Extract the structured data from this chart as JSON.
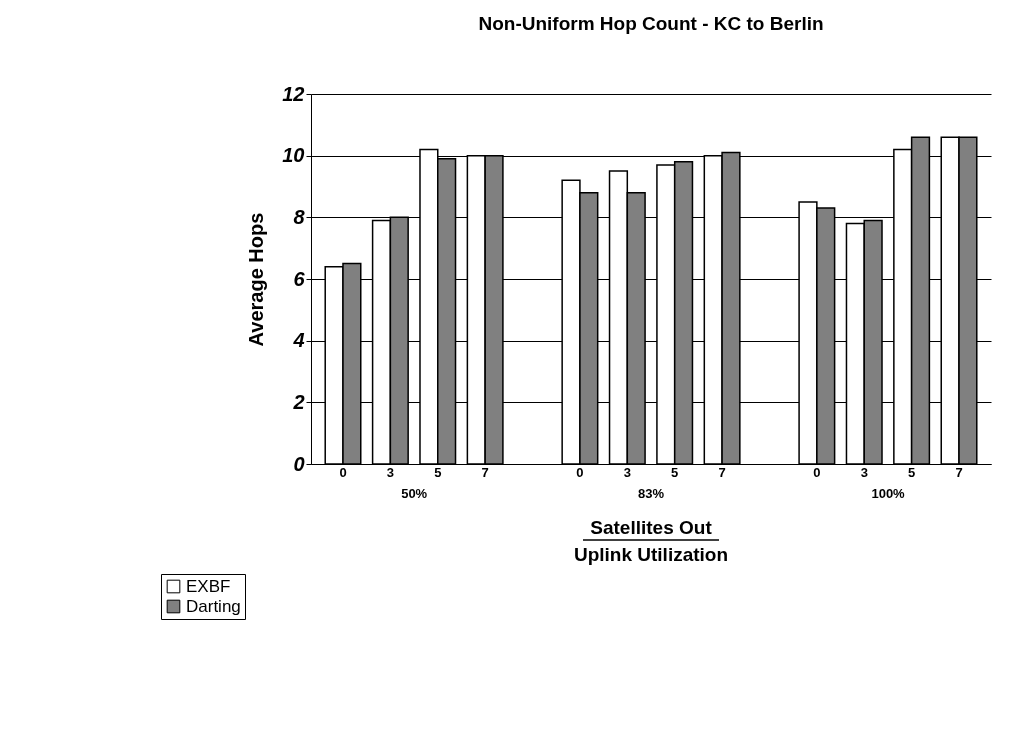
{
  "chart_data": {
    "type": "bar",
    "title": "Non-Uniform Hop Count - KC to Berlin",
    "categories": [
      "0",
      "3",
      "5",
      "7",
      null,
      "0",
      "3",
      "5",
      "7",
      null,
      "0",
      "3",
      "5",
      "7"
    ],
    "series": [
      {
        "name": "EXBF",
        "color": "#ffffff",
        "values": [
          6.4,
          7.9,
          10.2,
          10.0,
          null,
          9.2,
          9.5,
          9.7,
          10.0,
          null,
          8.5,
          7.8,
          10.2,
          10.6
        ]
      },
      {
        "name": "Darting",
        "color": "#808080",
        "values": [
          6.5,
          8.0,
          9.9,
          10.0,
          null,
          8.8,
          8.8,
          9.8,
          10.1,
          null,
          8.3,
          7.9,
          10.6,
          10.6
        ]
      }
    ],
    "xlabel": "Satellites Out",
    "ylabel": "Average Hops",
    "annotations": [
      "50%",
      "83%",
      "100%",
      "Uplink Utilization"
    ],
    "ylim": [
      0,
      12
    ],
    "yticks": [
      0,
      2,
      4,
      6,
      8,
      10,
      12
    ],
    "grid": "y",
    "legend": "bottom left"
  }
}
